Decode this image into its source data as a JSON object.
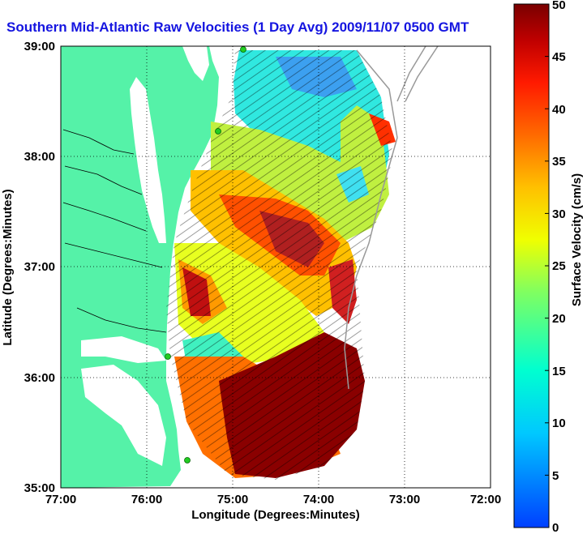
{
  "title": "Southern Mid-Atlantic Raw Velocities (1 Day Avg) 2009/11/07 0500 GMT",
  "x_axis": {
    "label": "Longitude (Degrees:Minutes)",
    "ticks": [
      "77:00",
      "76:00",
      "75:00",
      "74:00",
      "73:00",
      "72:00"
    ]
  },
  "y_axis": {
    "label": "Latitude (Degrees:Minutes)",
    "ticks": [
      "39:00",
      "38:00",
      "37:00",
      "36:00",
      "35:00"
    ]
  },
  "colorbar": {
    "label": "Surface Velocity (cm/s)",
    "ticks": [
      "50",
      "45",
      "40",
      "35",
      "30",
      "25",
      "20",
      "15",
      "10",
      "5",
      "0"
    ],
    "range": [
      0,
      50
    ]
  },
  "colors": {
    "land": "#55f2a8",
    "title": "#1515e0",
    "station": "#22cc22"
  },
  "stations": [
    "station-north",
    "station-mid-north",
    "station-mid-south",
    "station-south"
  ]
}
